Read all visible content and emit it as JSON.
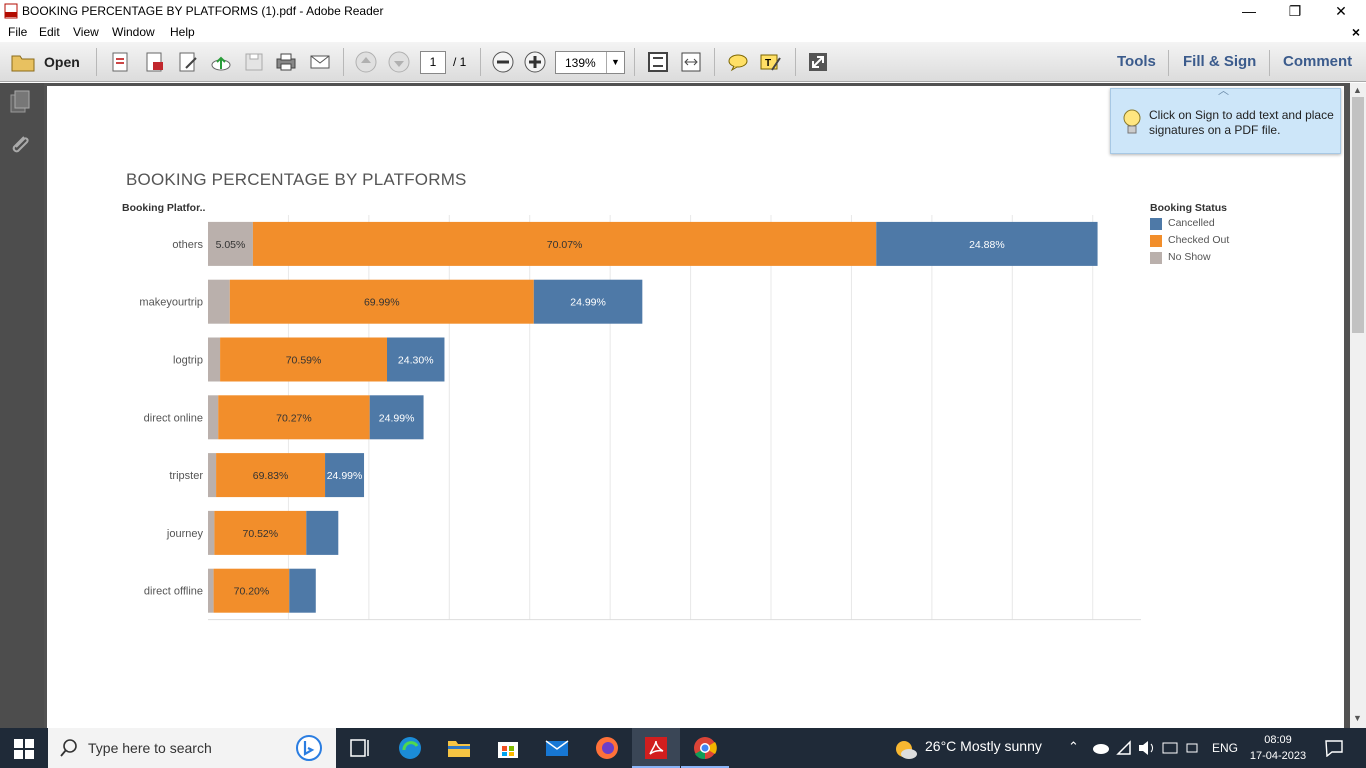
{
  "window": {
    "title": "BOOKING PERCENTAGE BY PLATFORMS (1).pdf - Adobe Reader",
    "minimize": "—",
    "restore": "❐",
    "close": "✕"
  },
  "menu": {
    "items": [
      "File",
      "Edit",
      "View",
      "Window",
      "Help"
    ],
    "close_doc": "×"
  },
  "toolbar": {
    "open_label": "Open",
    "page_current": "1",
    "page_total": "/ 1",
    "zoom": "139%",
    "tools": "Tools",
    "fill_sign": "Fill & Sign",
    "comment": "Comment"
  },
  "tip": {
    "text": "Click on Sign to add text and place signatures on a PDF file."
  },
  "chart_data": {
    "type": "bar",
    "title": "BOOKING PERCENTAGE BY PLATFORMS",
    "y_header": "Booking Platfor..",
    "legend_title": "Booking Status",
    "categories": [
      "others",
      "makeyourtrip",
      "logtrip",
      "direct online",
      "tripster",
      "journey",
      "direct offline"
    ],
    "series": [
      {
        "name": "No Show",
        "color": "#bab0ac",
        "values": [
          5.05,
          5.02,
          5.11,
          4.74,
          5.18,
          4.9,
          5.2
        ],
        "labels": [
          "5.05%",
          "",
          "",
          "",
          "",
          "",
          ""
        ]
      },
      {
        "name": "Checked Out",
        "color": "#f28e2b",
        "values": [
          70.07,
          69.99,
          70.59,
          70.27,
          69.83,
          70.52,
          70.2
        ],
        "labels": [
          "70.07%",
          "69.99%",
          "70.59%",
          "70.27%",
          "69.83%",
          "70.52%",
          "70.20%"
        ]
      },
      {
        "name": "Cancelled",
        "color": "#4e79a7",
        "values": [
          24.88,
          24.99,
          24.3,
          24.99,
          24.99,
          24.58,
          24.6
        ],
        "labels": [
          "24.88%",
          "24.99%",
          "24.30%",
          "24.99%",
          "24.99%",
          "",
          ""
        ]
      }
    ],
    "bar_totals": [
      55300,
      27000,
      14700,
      13400,
      9700,
      8100,
      6700
    ],
    "x_max": 58000,
    "gridlines": true,
    "legend_position": "right"
  },
  "taskbar": {
    "search_placeholder": "Type here to search",
    "weather": "26°C  Mostly sunny",
    "lang": "ENG",
    "time": "08:09",
    "date": "17-04-2023"
  }
}
